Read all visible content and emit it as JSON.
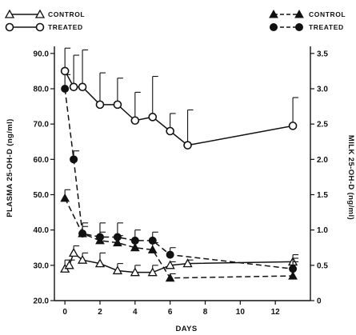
{
  "chart_data": {
    "type": "line",
    "xlabel": "DAYS",
    "ylabel_left": "PLASMA 25-OH-D (ng/ml)",
    "ylabel_right": "MILK 25-OH-D (ng/ml)",
    "x_ticks": [
      0,
      2,
      4,
      6,
      8,
      10,
      12
    ],
    "x_range": [
      -0.6,
      14
    ],
    "left_ticks": [
      "20.0",
      "30.0",
      "40.0",
      "50.0",
      "60.0",
      "70.0",
      "80.0",
      "90.0"
    ],
    "left_range": [
      20,
      92
    ],
    "right_ticks": [
      "0",
      "0.5",
      "1.0",
      "1.5",
      "2.0",
      "2.5",
      "3.0",
      "3.5"
    ],
    "right_range": [
      0,
      3.6
    ],
    "grid": false,
    "legend_left": [
      {
        "label": "CONTROL",
        "marker": "open-triangle",
        "line": "solid"
      },
      {
        "label": "TREATED",
        "marker": "open-circle",
        "line": "solid"
      }
    ],
    "legend_right": [
      {
        "label": "CONTROL",
        "marker": "filled-triangle",
        "line": "dashed"
      },
      {
        "label": "TREATED",
        "marker": "filled-circle",
        "line": "dashed"
      }
    ],
    "series": [
      {
        "name": "CONTROL",
        "axis": "left",
        "marker": "open-triangle",
        "line": "solid",
        "x": [
          0,
          0.25,
          0.5,
          1,
          2,
          3,
          4,
          5,
          6,
          7,
          13
        ],
        "y": [
          29,
          30,
          33.5,
          31.5,
          30.5,
          28.5,
          28,
          28,
          30,
          30.5,
          31
        ],
        "err": [
          2.5,
          1.5,
          2,
          2,
          3,
          2,
          2,
          2,
          1,
          1,
          1
        ]
      },
      {
        "name": "TREATED",
        "axis": "left",
        "marker": "open-circle",
        "line": "solid",
        "x": [
          0,
          0.5,
          1,
          2,
          3,
          4,
          5,
          6,
          7,
          13
        ],
        "y": [
          85,
          80.5,
          80.5,
          75.5,
          75.5,
          71,
          72,
          68,
          64,
          69.5
        ],
        "err": [
          6.5,
          9,
          10.5,
          9,
          7.5,
          8,
          11.5,
          5,
          10,
          8
        ]
      },
      {
        "name": "CONTROL",
        "axis": "right",
        "marker": "filled-triangle",
        "line": "dashed",
        "x": [
          0,
          1,
          2,
          3,
          4,
          5,
          6,
          13
        ],
        "y": [
          1.45,
          0.95,
          0.85,
          0.82,
          0.75,
          0.72,
          0.32,
          0.35
        ],
        "err": [
          0.12,
          0.1,
          0.12,
          0.1,
          0.1,
          0.1,
          0.06,
          0.2
        ]
      },
      {
        "name": "TREATED",
        "axis": "right",
        "marker": "filled-circle",
        "line": "dashed",
        "x": [
          0,
          0.5,
          1,
          2,
          3,
          4,
          5,
          6,
          13
        ],
        "y": [
          3.0,
          2.0,
          0.95,
          0.9,
          0.9,
          0.85,
          0.85,
          0.65,
          0.45
        ],
        "err": [
          0.2,
          0.12,
          0.15,
          0.2,
          0.2,
          0.15,
          0.12,
          0.1,
          0.2
        ]
      }
    ]
  }
}
